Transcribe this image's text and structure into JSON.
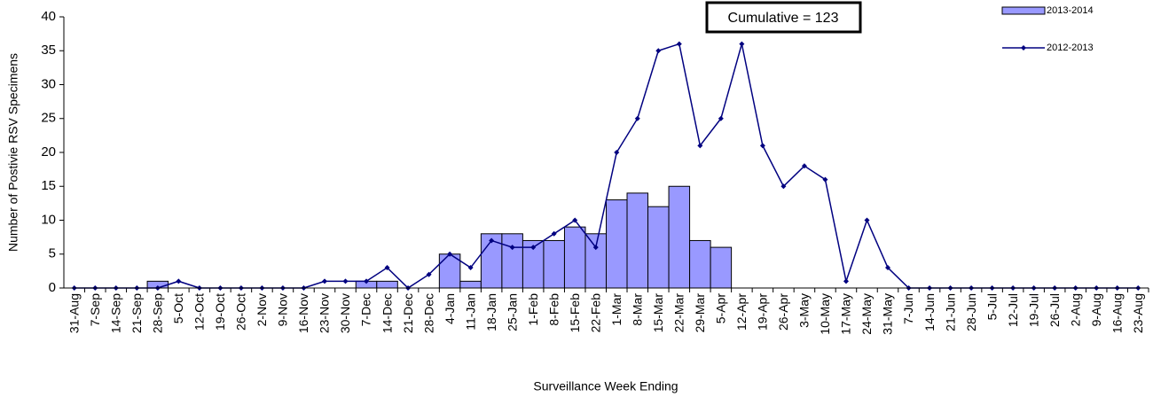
{
  "chart_data": {
    "type": "combo",
    "annotation": "Cumulative =  123",
    "y_label": "Number of Postivie RSV Specimens",
    "x_label": "Surveillance Week Ending",
    "categories": [
      "31-Aug",
      "7-Sep",
      "14-Sep",
      "21-Sep",
      "28-Sep",
      "5-Oct",
      "12-Oct",
      "19-Oct",
      "26-Oct",
      "2-Nov",
      "9-Nov",
      "16-Nov",
      "23-Nov",
      "30-Nov",
      "7-Dec",
      "14-Dec",
      "21-Dec",
      "28-Dec",
      "4-Jan",
      "11-Jan",
      "18-Jan",
      "25-Jan",
      "1-Feb",
      "8-Feb",
      "15-Feb",
      "22-Feb",
      "1-Mar",
      "8-Mar",
      "15-Mar",
      "22-Mar",
      "29-Mar",
      "5-Apr",
      "12-Apr",
      "19-Apr",
      "26-Apr",
      "3-May",
      "10-May",
      "17-May",
      "24-May",
      "31-May",
      "7-Jun",
      "14-Jun",
      "21-Jun",
      "28-Jun",
      "5-Jul",
      "12-Jul",
      "19-Jul",
      "26-Jul",
      "2-Aug",
      "9-Aug",
      "16-Aug",
      "23-Aug"
    ],
    "series": [
      {
        "name": "2013-2014",
        "type": "bar",
        "color": "#9999ff",
        "values": [
          0,
          0,
          0,
          0,
          1,
          0,
          0,
          0,
          0,
          0,
          0,
          0,
          0,
          0,
          1,
          1,
          0,
          0,
          5,
          1,
          8,
          8,
          7,
          7,
          9,
          8,
          13,
          14,
          12,
          15,
          7,
          6,
          null,
          null,
          null,
          null,
          null,
          null,
          null,
          null,
          null,
          null,
          null,
          null,
          null,
          null,
          null,
          null,
          null,
          null,
          null,
          null
        ]
      },
      {
        "name": "2012-2013",
        "type": "line",
        "color": "#000080",
        "values": [
          0,
          0,
          0,
          0,
          0,
          1,
          0,
          0,
          0,
          0,
          0,
          0,
          1,
          1,
          1,
          3,
          0,
          2,
          5,
          3,
          7,
          6,
          6,
          8,
          10,
          6,
          20,
          25,
          35,
          36,
          21,
          25,
          36,
          21,
          15,
          18,
          16,
          1,
          10,
          3,
          0,
          0,
          0,
          0,
          0,
          0,
          0,
          0,
          0,
          0,
          0,
          0
        ]
      }
    ],
    "ylim": [
      0,
      40
    ],
    "yticks": [
      0,
      5,
      10,
      15,
      20,
      25,
      30,
      35,
      40
    ],
    "legend": "top-right"
  }
}
